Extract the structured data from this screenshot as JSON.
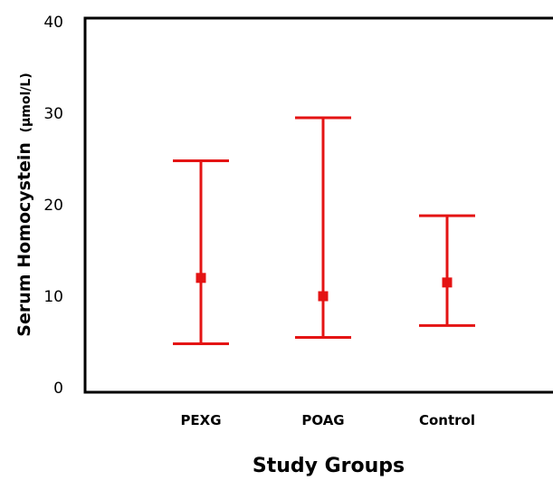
{
  "chart_data": {
    "type": "errorbar",
    "categories": [
      "PEXG",
      "POAG",
      "Control"
    ],
    "series": [
      {
        "mean": [
          12,
          10,
          11.5
        ],
        "low": [
          4.8,
          5.5,
          6.8
        ],
        "high": [
          24.8,
          29.5,
          18.8
        ]
      }
    ],
    "xlabel": "Study Groups",
    "ylabel": "Serum Homocystein",
    "ylabel_unit": "(μmol/L)",
    "ylim": [
      0,
      40
    ],
    "yticks": [
      "0",
      "10",
      "20",
      "30",
      "40"
    ],
    "grid": false,
    "legend": "none",
    "marker_color": "#e41414",
    "axis_color": "#000000"
  }
}
